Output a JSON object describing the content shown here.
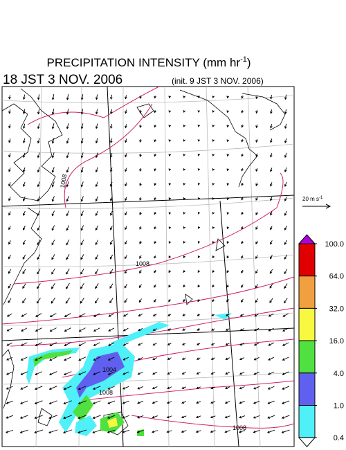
{
  "header": {
    "title": "PRECIPITATION INTENSITY (mm hr",
    "title_sup": "-1",
    "title_close": ")",
    "valid_time": "18 JST 3 NOV. 2006",
    "init_time": "(init. 9 JST 3 NOV. 2006)"
  },
  "wind_scale": {
    "label": "20 m s",
    "sup": "-1"
  },
  "isobar_labels": [
    "1008",
    "1008",
    "1004",
    "1008",
    "1008"
  ],
  "colorbar": {
    "over_color": "#b000e0",
    "under_color": "#ffffff",
    "colors": [
      "#e00000",
      "#f0a040",
      "#f8f840",
      "#50e040",
      "#6060f0",
      "#50f0f8"
    ],
    "ticks": [
      {
        "value": 100,
        "label": "100.0"
      },
      {
        "value": 64,
        "label": "64.0"
      },
      {
        "value": 32,
        "label": "32.0"
      },
      {
        "value": 16,
        "label": "16.0"
      },
      {
        "value": 4,
        "label": "4.0"
      },
      {
        "value": 1,
        "label": "1.0"
      },
      {
        "value": 0.4,
        "label": "0.4"
      }
    ]
  }
}
